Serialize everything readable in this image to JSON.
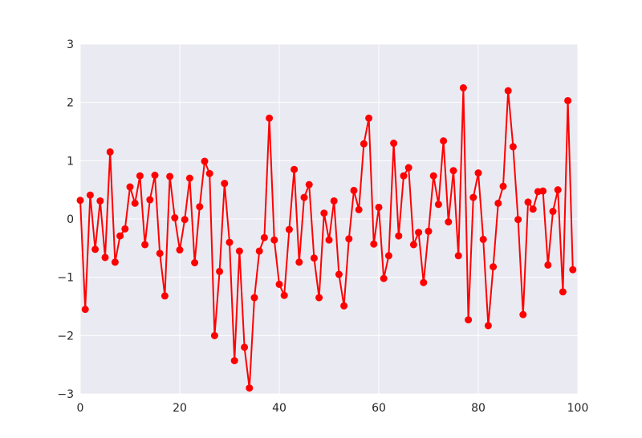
{
  "chart_data": {
    "type": "line",
    "title": "",
    "xlabel": "",
    "ylabel": "",
    "xlim": [
      0,
      100
    ],
    "ylim": [
      -3,
      3
    ],
    "xticks": [
      0,
      20,
      40,
      60,
      80,
      100
    ],
    "yticks": [
      -3,
      -2,
      -1,
      0,
      1,
      2,
      3
    ],
    "xtick_labels": [
      "0",
      "20",
      "40",
      "60",
      "80",
      "100"
    ],
    "ytick_labels": [
      "−3",
      "−2",
      "−1",
      "0",
      "1",
      "2",
      "3"
    ],
    "grid": true,
    "legend": "none",
    "style": {
      "background": "#EAEAF2",
      "grid_color": "#FFFFFF",
      "line_color": "#FF0000",
      "marker": "circle"
    },
    "series": [
      {
        "x": [
          0,
          1,
          2,
          3,
          4,
          5,
          6,
          7,
          8,
          9,
          10,
          11,
          12,
          13,
          14,
          15,
          16,
          17,
          18,
          19,
          20,
          21,
          22,
          23,
          24,
          25,
          26,
          27,
          28,
          29,
          30,
          31,
          32,
          33,
          34,
          35,
          36,
          37,
          38,
          39,
          40,
          41,
          42,
          43,
          44,
          45,
          46,
          47,
          48,
          49,
          50,
          51,
          52,
          53,
          54,
          55,
          56,
          57,
          58,
          59,
          60,
          61,
          62,
          63,
          64,
          65,
          66,
          67,
          68,
          69,
          70,
          71,
          72,
          73,
          74,
          75,
          76,
          77,
          78,
          79,
          80,
          81,
          82,
          83,
          84,
          85,
          86,
          87,
          88,
          89,
          90,
          91,
          92,
          93,
          94,
          95,
          96,
          97,
          98,
          99
        ],
        "y": [
          0.32,
          -1.55,
          0.41,
          -0.52,
          0.31,
          -0.66,
          1.15,
          -0.74,
          -0.29,
          -0.17,
          0.55,
          0.27,
          0.74,
          -0.44,
          0.33,
          0.75,
          -0.59,
          -1.32,
          0.73,
          0.02,
          -0.53,
          -0.01,
          0.7,
          -0.75,
          0.21,
          0.99,
          0.78,
          -2.0,
          -0.9,
          0.61,
          -0.4,
          -2.43,
          -0.55,
          -2.2,
          -2.9,
          -1.35,
          -0.55,
          -0.32,
          1.73,
          -0.36,
          -1.12,
          -1.31,
          -0.18,
          0.85,
          -0.74,
          0.37,
          0.59,
          -0.67,
          -1.35,
          0.1,
          -0.36,
          0.31,
          -0.95,
          -1.49,
          -0.34,
          0.49,
          0.16,
          1.29,
          1.73,
          -0.43,
          0.2,
          -1.02,
          -0.63,
          1.3,
          -0.29,
          0.74,
          0.88,
          -0.44,
          -0.23,
          -1.09,
          -0.21,
          0.74,
          0.25,
          1.34,
          -0.05,
          0.83,
          -0.63,
          2.25,
          -1.73,
          0.37,
          0.79,
          -0.35,
          -1.83,
          -0.82,
          0.27,
          0.56,
          2.2,
          1.24,
          -0.01,
          -1.64,
          0.29,
          0.17,
          0.47,
          0.48,
          -0.79,
          0.13,
          0.5,
          -1.25,
          2.03,
          -0.87
        ]
      }
    ]
  }
}
